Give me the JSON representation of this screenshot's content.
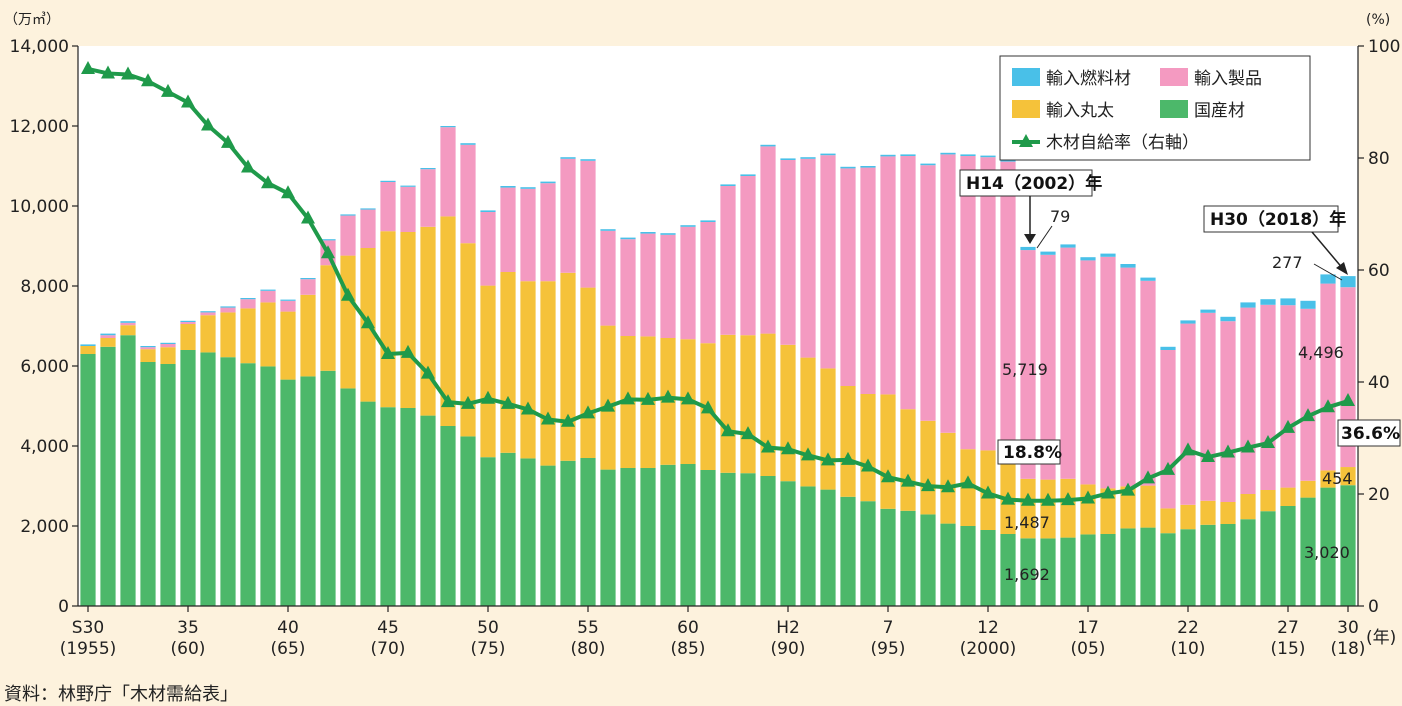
{
  "chart_data": {
    "type": "bar",
    "stacked": true,
    "left_axis": {
      "unit": "（万㎥）",
      "range": [
        0,
        14000
      ],
      "ticks": [
        0,
        2000,
        4000,
        6000,
        8000,
        10000,
        12000,
        14000
      ],
      "tick_labels": [
        "0",
        "2,000",
        "4,000",
        "6,000",
        "8,000",
        "10,000",
        "12,000",
        "14,000"
      ]
    },
    "right_axis": {
      "unit": "(%)",
      "range": [
        0,
        100
      ],
      "ticks": [
        0,
        20,
        40,
        60,
        80,
        100
      ],
      "tick_labels": [
        "0",
        "20",
        "40",
        "60",
        "80",
        "100"
      ]
    },
    "x_axis": {
      "unit": "(年)",
      "labels": [
        {
          "year": 1955,
          "top": "S30",
          "bottom": "(1955)"
        },
        {
          "year": 1960,
          "top": "35",
          "bottom": "(60)"
        },
        {
          "year": 1965,
          "top": "40",
          "bottom": "(65)"
        },
        {
          "year": 1970,
          "top": "45",
          "bottom": "(70)"
        },
        {
          "year": 1975,
          "top": "50",
          "bottom": "(75)"
        },
        {
          "year": 1980,
          "top": "55",
          "bottom": "(80)"
        },
        {
          "year": 1985,
          "top": "60",
          "bottom": "(85)"
        },
        {
          "year": 1990,
          "top": "H2",
          "bottom": "(90)"
        },
        {
          "year": 1995,
          "top": "7",
          "bottom": "(95)"
        },
        {
          "year": 2000,
          "top": "12",
          "bottom": "(2000)"
        },
        {
          "year": 2005,
          "top": "17",
          "bottom": "(05)"
        },
        {
          "year": 2010,
          "top": "22",
          "bottom": "(10)"
        },
        {
          "year": 2015,
          "top": "27",
          "bottom": "(15)"
        },
        {
          "year": 2018,
          "top": "30",
          "bottom": "(18)"
        }
      ]
    },
    "years": [
      1955,
      1956,
      1957,
      1958,
      1959,
      1960,
      1961,
      1962,
      1963,
      1964,
      1965,
      1966,
      1967,
      1968,
      1969,
      1970,
      1971,
      1972,
      1973,
      1974,
      1975,
      1976,
      1977,
      1978,
      1979,
      1980,
      1981,
      1982,
      1983,
      1984,
      1985,
      1986,
      1987,
      1988,
      1989,
      1990,
      1991,
      1992,
      1993,
      1994,
      1995,
      1996,
      1997,
      1998,
      1999,
      2000,
      2001,
      2002,
      2003,
      2004,
      2005,
      2006,
      2007,
      2008,
      2009,
      2010,
      2011,
      2012,
      2013,
      2014,
      2015,
      2016,
      2017,
      2018
    ],
    "series": [
      {
        "name": "国産材",
        "color": "#4cb86a",
        "values": [
          6300,
          6480,
          6770,
          6100,
          6050,
          6400,
          6340,
          6220,
          6070,
          5990,
          5660,
          5740,
          5880,
          5440,
          5110,
          4970,
          4950,
          4760,
          4500,
          4240,
          3720,
          3830,
          3690,
          3510,
          3630,
          3700,
          3410,
          3450,
          3450,
          3530,
          3550,
          3400,
          3330,
          3320,
          3250,
          3120,
          2990,
          2910,
          2730,
          2620,
          2430,
          2380,
          2290,
          2060,
          2000,
          1900,
          1800,
          1692,
          1690,
          1710,
          1790,
          1800,
          1940,
          1960,
          1820,
          1920,
          2030,
          2050,
          2170,
          2370,
          2500,
          2710,
          2960,
          3020
        ]
      },
      {
        "name": "輸入丸太",
        "color": "#f5c23a",
        "values": [
          200,
          220,
          250,
          320,
          420,
          650,
          930,
          1120,
          1370,
          1600,
          1700,
          2040,
          2640,
          3320,
          3840,
          4400,
          4400,
          4720,
          5240,
          4830,
          4290,
          4520,
          4430,
          4610,
          4700,
          4260,
          3600,
          3300,
          3290,
          3170,
          3120,
          3170,
          3450,
          3450,
          3560,
          3410,
          3220,
          3030,
          2770,
          2680,
          2860,
          2540,
          2340,
          2270,
          1920,
          1990,
          1910,
          1487,
          1470,
          1470,
          1250,
          1140,
          1050,
          1050,
          620,
          610,
          600,
          550,
          630,
          530,
          460,
          420,
          430,
          454
        ]
      },
      {
        "name": "輸入製品",
        "color": "#f49ac1",
        "values": [
          0,
          70,
          60,
          50,
          80,
          50,
          70,
          120,
          230,
          290,
          270,
          390,
          620,
          1000,
          960,
          1230,
          1130,
          1440,
          2230,
          2460,
          1840,
          2110,
          2310,
          2450,
          2850,
          3170,
          2370,
          2420,
          2570,
          2580,
          2810,
          3030,
          3720,
          3980,
          4680,
          4620,
          4970,
          5330,
          5440,
          5660,
          5950,
          6330,
          6390,
          6960,
          7330,
          7330,
          7400,
          5719,
          5620,
          5780,
          5600,
          5790,
          5470,
          5120,
          3960,
          4530,
          4700,
          4520,
          4660,
          4630,
          4560,
          4300,
          4670,
          4496
        ]
      },
      {
        "name": "輸入燃料材",
        "color": "#49c0e8",
        "values": [
          40,
          40,
          40,
          30,
          30,
          30,
          30,
          30,
          30,
          30,
          30,
          30,
          30,
          30,
          30,
          30,
          30,
          30,
          30,
          40,
          40,
          40,
          40,
          40,
          40,
          40,
          40,
          40,
          40,
          40,
          40,
          40,
          40,
          40,
          40,
          40,
          40,
          40,
          40,
          40,
          40,
          40,
          40,
          40,
          40,
          40,
          40,
          79,
          80,
          80,
          80,
          80,
          90,
          80,
          80,
          80,
          80,
          110,
          130,
          140,
          170,
          200,
          230,
          277
        ]
      }
    ],
    "line_series": {
      "name": "木材自給率（右軸）",
      "color": "#1f9a4a",
      "values": [
        95.9,
        95.1,
        94.9,
        93.7,
        91.8,
        89.9,
        85.8,
        82.7,
        78.3,
        75.5,
        73.7,
        69.2,
        63.0,
        55.4,
        50.5,
        45.0,
        45.2,
        41.5,
        36.4,
        36.1,
        37.0,
        36.1,
        35.1,
        33.3,
        32.9,
        34.4,
        35.6,
        36.9,
        36.8,
        37.2,
        36.9,
        35.3,
        31.2,
        30.7,
        28.3,
        28.0,
        26.9,
        26.0,
        26.1,
        24.9,
        23.0,
        22.2,
        21.4,
        21.2,
        21.9,
        20.1,
        19.0,
        18.8,
        18.8,
        18.9,
        19.2,
        20.1,
        20.6,
        22.8,
        24.3,
        27.8,
        26.6,
        27.4,
        28.3,
        29.1,
        31.8,
        33.9,
        35.5,
        36.6
      ]
    },
    "legend": {
      "placement": "top-right",
      "items": [
        {
          "label": "輸入燃料材",
          "color": "#49c0e8",
          "kind": "box"
        },
        {
          "label": "輸入製品",
          "color": "#f49ac1",
          "kind": "box"
        },
        {
          "label": "輸入丸太",
          "color": "#f5c23a",
          "kind": "box"
        },
        {
          "label": "国産材",
          "color": "#4cb86a",
          "kind": "box"
        },
        {
          "label": "木材自給率（右軸）",
          "color": "#1f9a4a",
          "kind": "line"
        }
      ]
    },
    "annotations": {
      "h14_box": "H14（2002）年",
      "h30_box": "H30（2018）年",
      "h14_fuel": "79",
      "h14_products": "5,719",
      "h14_logs": "1,487",
      "h14_domestic": "1,692",
      "h14_rate": "18.8%",
      "h30_fuel": "277",
      "h30_products": "4,496",
      "h30_logs": "454",
      "h30_domestic": "3,020",
      "h30_rate": "36.6%"
    },
    "grid": false
  },
  "source": "資料：林野庁「木材需給表」"
}
